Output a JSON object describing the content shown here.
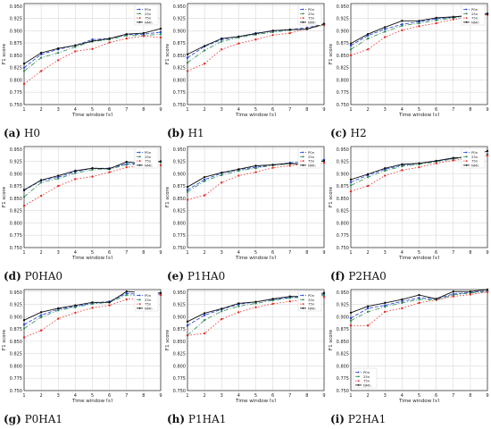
{
  "figure": {
    "shared": {
      "xlabel": "Time window [s]",
      "ylabel": "F1 score",
      "x": [
        1,
        2,
        3,
        4,
        5,
        6,
        7,
        8,
        9
      ],
      "x_ticks": [
        "1",
        "2",
        "3",
        "4",
        "5",
        "6",
        "7",
        "8",
        "9"
      ],
      "y_ticks": [
        "0.750",
        "0.775",
        "0.800",
        "0.825",
        "0.850",
        "0.875",
        "0.900",
        "0.925",
        "0.950"
      ],
      "xlim": [
        1,
        9
      ],
      "ylim": [
        0.75,
        0.955
      ],
      "grid": true,
      "legend_entries": [
        "P0n",
        "25n",
        "75n",
        "NMn"
      ],
      "series_colors": [
        "#1f3fd8",
        "#2e8b57",
        "#e8261f",
        "#111111"
      ],
      "series_styles": [
        "dashed",
        "dashdot",
        "dotted",
        "solid"
      ]
    }
  },
  "chart_data": [
    {
      "type": "line",
      "label": "(a)",
      "name": "H0",
      "legend": "top-right",
      "x": [
        1,
        2,
        3,
        4,
        5,
        6,
        7,
        8,
        9
      ],
      "series": [
        {
          "name": "P0n",
          "values": [
            0.825,
            0.852,
            0.862,
            0.87,
            0.882,
            0.884,
            0.892,
            0.893,
            0.897
          ]
        },
        {
          "name": "25n",
          "values": [
            0.818,
            0.845,
            0.855,
            0.867,
            0.878,
            0.882,
            0.89,
            0.89,
            0.893
          ]
        },
        {
          "name": "75n",
          "values": [
            0.792,
            0.818,
            0.84,
            0.858,
            0.863,
            0.876,
            0.884,
            0.889,
            0.886
          ]
        },
        {
          "name": "NMn",
          "values": [
            0.833,
            0.855,
            0.864,
            0.87,
            0.879,
            0.884,
            0.893,
            0.895,
            0.904
          ]
        }
      ]
    },
    {
      "type": "line",
      "label": "(b)",
      "name": "H1",
      "legend": "top-right",
      "x": [
        1,
        2,
        3,
        4,
        5,
        6,
        7,
        8,
        9
      ],
      "series": [
        {
          "name": "P0n",
          "values": [
            0.845,
            0.868,
            0.882,
            0.888,
            0.895,
            0.899,
            0.902,
            0.906,
            0.913
          ]
        },
        {
          "name": "25n",
          "values": [
            0.835,
            0.86,
            0.878,
            0.886,
            0.892,
            0.897,
            0.901,
            0.904,
            0.911
          ]
        },
        {
          "name": "75n",
          "values": [
            0.818,
            0.833,
            0.862,
            0.874,
            0.882,
            0.891,
            0.895,
            0.904,
            0.912
          ]
        },
        {
          "name": "NMn",
          "values": [
            0.852,
            0.869,
            0.884,
            0.888,
            0.894,
            0.9,
            0.902,
            0.903,
            0.914
          ]
        }
      ]
    },
    {
      "type": "line",
      "label": "(c)",
      "name": "H2",
      "legend": "top-right",
      "x": [
        1,
        2,
        3,
        4,
        5,
        6,
        7,
        8,
        9
      ],
      "series": [
        {
          "name": "P0n",
          "values": [
            0.87,
            0.89,
            0.903,
            0.913,
            0.918,
            0.924,
            0.927,
            0.932,
            0.935
          ]
        },
        {
          "name": "25n",
          "values": [
            0.862,
            0.884,
            0.898,
            0.91,
            0.915,
            0.921,
            0.926,
            0.93,
            0.932
          ]
        },
        {
          "name": "75n",
          "values": [
            0.85,
            0.862,
            0.887,
            0.901,
            0.909,
            0.915,
            0.923,
            0.927,
            0.932
          ]
        },
        {
          "name": "NMn",
          "values": [
            0.874,
            0.893,
            0.907,
            0.92,
            0.92,
            0.926,
            0.928,
            0.931,
            0.934
          ]
        }
      ]
    },
    {
      "type": "line",
      "label": "(d)",
      "name": "P0HA0",
      "legend": "top-right",
      "x": [
        1,
        2,
        3,
        4,
        5,
        6,
        7,
        8,
        9
      ],
      "series": [
        {
          "name": "P0n",
          "values": [
            0.866,
            0.886,
            0.893,
            0.904,
            0.911,
            0.911,
            0.92,
            0.921,
            0.925
          ]
        },
        {
          "name": "25n",
          "values": [
            0.853,
            0.882,
            0.89,
            0.901,
            0.908,
            0.909,
            0.918,
            0.919,
            0.923
          ]
        },
        {
          "name": "75n",
          "values": [
            0.835,
            0.855,
            0.875,
            0.889,
            0.894,
            0.903,
            0.913,
            0.916,
            0.917
          ]
        },
        {
          "name": "NMn",
          "values": [
            0.867,
            0.887,
            0.896,
            0.906,
            0.911,
            0.91,
            0.924,
            0.92,
            0.925
          ]
        }
      ]
    },
    {
      "type": "line",
      "label": "(e)",
      "name": "P1HA0",
      "legend": "top-right",
      "x": [
        1,
        2,
        3,
        4,
        5,
        6,
        7,
        8,
        9
      ],
      "series": [
        {
          "name": "P0n",
          "values": [
            0.867,
            0.888,
            0.901,
            0.908,
            0.913,
            0.918,
            0.922,
            0.924,
            0.928
          ]
        },
        {
          "name": "25n",
          "values": [
            0.863,
            0.885,
            0.897,
            0.906,
            0.911,
            0.917,
            0.92,
            0.922,
            0.925
          ]
        },
        {
          "name": "75n",
          "values": [
            0.847,
            0.856,
            0.882,
            0.896,
            0.903,
            0.912,
            0.916,
            0.92,
            0.922
          ]
        },
        {
          "name": "NMn",
          "values": [
            0.873,
            0.893,
            0.902,
            0.909,
            0.916,
            0.918,
            0.921,
            0.918,
            0.926
          ]
        }
      ]
    },
    {
      "type": "line",
      "label": "(f)",
      "name": "P2HA0",
      "legend": "top-right",
      "x": [
        1,
        2,
        3,
        4,
        5,
        6,
        7,
        8,
        9
      ],
      "series": [
        {
          "name": "P0n",
          "values": [
            0.883,
            0.897,
            0.909,
            0.917,
            0.921,
            0.925,
            0.931,
            0.935,
            0.94
          ]
        },
        {
          "name": "25n",
          "values": [
            0.876,
            0.893,
            0.906,
            0.915,
            0.919,
            0.924,
            0.93,
            0.934,
            0.939
          ]
        },
        {
          "name": "75n",
          "values": [
            0.864,
            0.875,
            0.896,
            0.907,
            0.913,
            0.921,
            0.927,
            0.931,
            0.937
          ]
        },
        {
          "name": "NMn",
          "values": [
            0.888,
            0.899,
            0.911,
            0.919,
            0.921,
            0.926,
            0.932,
            0.934,
            0.946
          ]
        }
      ]
    },
    {
      "type": "line",
      "label": "(g)",
      "name": "P0HA1",
      "legend": "top-right",
      "x": [
        1,
        2,
        3,
        4,
        5,
        6,
        7,
        8,
        9
      ],
      "series": [
        {
          "name": "P0n",
          "values": [
            0.884,
            0.903,
            0.915,
            0.921,
            0.927,
            0.931,
            0.947,
            0.945,
            0.946
          ]
        },
        {
          "name": "25n",
          "values": [
            0.876,
            0.899,
            0.913,
            0.919,
            0.926,
            0.929,
            0.944,
            0.943,
            0.944
          ]
        },
        {
          "name": "75n",
          "values": [
            0.858,
            0.872,
            0.896,
            0.908,
            0.918,
            0.923,
            0.935,
            0.938,
            0.944
          ]
        },
        {
          "name": "NMn",
          "values": [
            0.893,
            0.909,
            0.917,
            0.923,
            0.929,
            0.929,
            0.951,
            0.949,
            0.948
          ]
        }
      ]
    },
    {
      "type": "line",
      "label": "(h)",
      "name": "P1HA1",
      "legend": "top-right",
      "x": [
        1,
        2,
        3,
        4,
        5,
        6,
        7,
        8,
        9
      ],
      "series": [
        {
          "name": "P0n",
          "values": [
            0.882,
            0.903,
            0.915,
            0.925,
            0.93,
            0.935,
            0.939,
            0.941,
            0.945
          ]
        },
        {
          "name": "25n",
          "values": [
            0.862,
            0.893,
            0.911,
            0.921,
            0.927,
            0.933,
            0.938,
            0.94,
            0.943
          ]
        },
        {
          "name": "75n",
          "values": [
            0.862,
            0.866,
            0.895,
            0.909,
            0.919,
            0.926,
            0.931,
            0.935,
            0.94
          ]
        },
        {
          "name": "NMn",
          "values": [
            0.89,
            0.907,
            0.916,
            0.927,
            0.93,
            0.936,
            0.941,
            0.941,
            0.948
          ]
        }
      ]
    },
    {
      "type": "line",
      "label": "(i)",
      "name": "P2HA1",
      "legend": "bottom-left",
      "x": [
        1,
        2,
        3,
        4,
        5,
        6,
        7,
        8,
        9
      ],
      "series": [
        {
          "name": "P0n",
          "values": [
            0.897,
            0.917,
            0.923,
            0.931,
            0.938,
            0.936,
            0.946,
            0.949,
            0.952
          ]
        },
        {
          "name": "25n",
          "values": [
            0.892,
            0.91,
            0.92,
            0.928,
            0.935,
            0.934,
            0.944,
            0.948,
            0.951
          ]
        },
        {
          "name": "75n",
          "values": [
            0.882,
            0.882,
            0.91,
            0.917,
            0.928,
            0.934,
            0.941,
            0.945,
            0.95
          ]
        },
        {
          "name": "NMn",
          "values": [
            0.908,
            0.921,
            0.928,
            0.935,
            0.944,
            0.936,
            0.951,
            0.951,
            0.955
          ]
        }
      ]
    }
  ]
}
